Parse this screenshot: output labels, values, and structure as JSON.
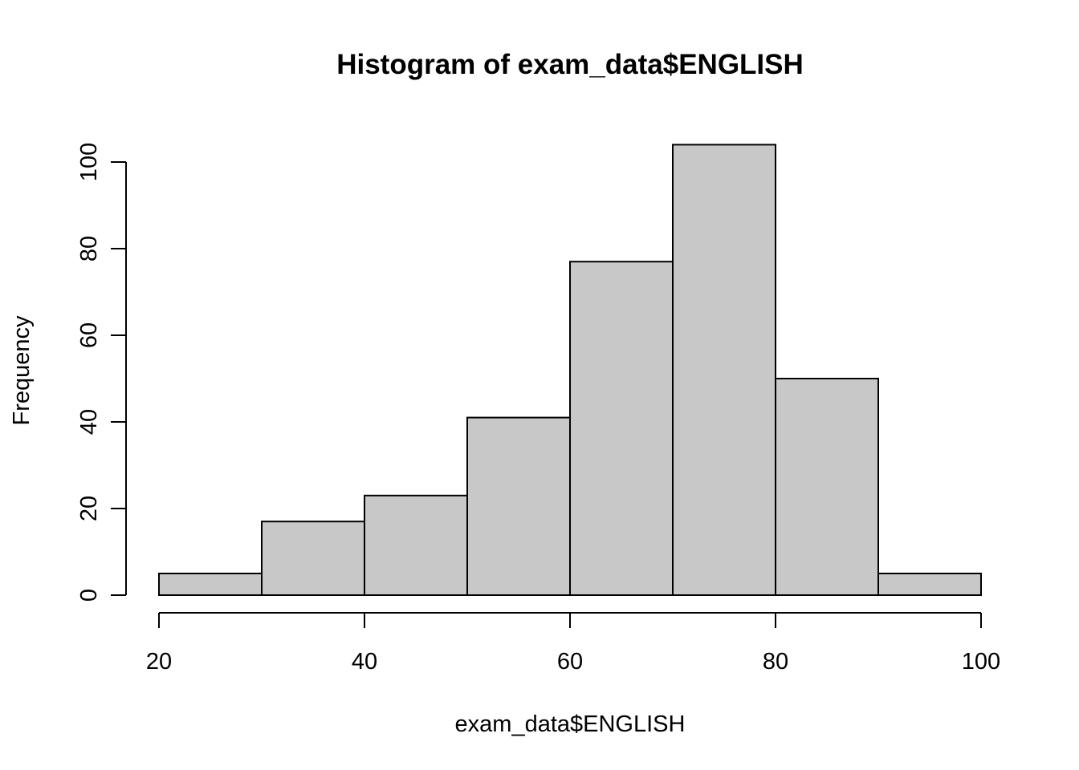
{
  "chart_data": {
    "type": "histogram",
    "title": "Histogram of exam_data$ENGLISH",
    "xlabel": "exam_data$ENGLISH",
    "ylabel": "Frequency",
    "bins": [
      {
        "from": 20,
        "to": 30,
        "count": 5
      },
      {
        "from": 30,
        "to": 40,
        "count": 17
      },
      {
        "from": 40,
        "to": 50,
        "count": 23
      },
      {
        "from": 50,
        "to": 60,
        "count": 41
      },
      {
        "from": 60,
        "to": 70,
        "count": 77
      },
      {
        "from": 70,
        "to": 80,
        "count": 104
      },
      {
        "from": 80,
        "to": 90,
        "count": 50
      },
      {
        "from": 90,
        "to": 100,
        "count": 5
      }
    ],
    "x_ticks": [
      20,
      40,
      60,
      80,
      100
    ],
    "y_ticks": [
      0,
      20,
      40,
      60,
      80,
      100
    ],
    "xlim": [
      20,
      100
    ],
    "ylim": [
      0,
      104
    ],
    "bar_color": "#c8c8c8",
    "grid": false
  }
}
